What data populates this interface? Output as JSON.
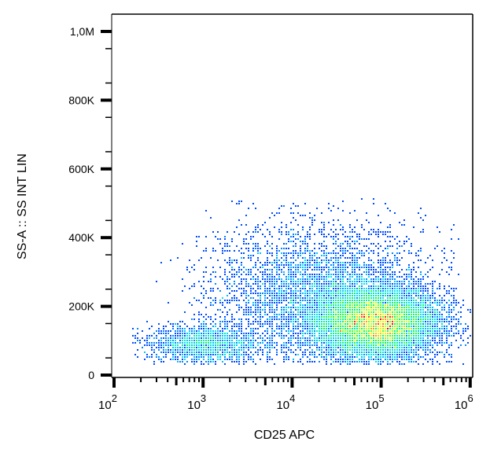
{
  "chart_data": {
    "type": "heatmap",
    "subtype": "flow-cytometry density dot plot",
    "xlabel": "CD25 APC",
    "ylabel": "SS-A :: SS INT LIN",
    "x_scale": "log",
    "xlim": [
      70,
      1100000
    ],
    "x_ticks": [
      {
        "base": "10",
        "exp": "2",
        "value": 100
      },
      {
        "base": "10",
        "exp": "3",
        "value": 1000
      },
      {
        "base": "10",
        "exp": "4",
        "value": 10000
      },
      {
        "base": "10",
        "exp": "5",
        "value": 100000
      },
      {
        "base": "10",
        "exp": "6",
        "value": 1000000
      }
    ],
    "ylim": [
      -5000,
      1050000
    ],
    "y_ticks": [
      {
        "label": "0",
        "value": 0
      },
      {
        "label": "200K",
        "value": 200000
      },
      {
        "label": "400K",
        "value": 400000
      },
      {
        "label": "600K",
        "value": 600000
      },
      {
        "label": "800K",
        "value": 800000
      },
      {
        "label": "1,0M",
        "value": 1000000
      }
    ],
    "grid": false,
    "colormap": [
      "#0000ff",
      "#00e0ff",
      "#00ff40",
      "#ffff00",
      "#ff0000"
    ],
    "populations": [
      {
        "x_center": 90000,
        "log_x_sd": 0.35,
        "y_center": 150000,
        "y_sd": 45000,
        "share": 0.6
      },
      {
        "x_center": 1000,
        "log_x_sd": 0.3,
        "y_center": 90000,
        "y_sd": 25000,
        "share": 0.1
      },
      {
        "x_center": 20000,
        "log_x_sd": 0.6,
        "y_center": 230000,
        "y_sd": 90000,
        "share": 0.3
      }
    ]
  }
}
